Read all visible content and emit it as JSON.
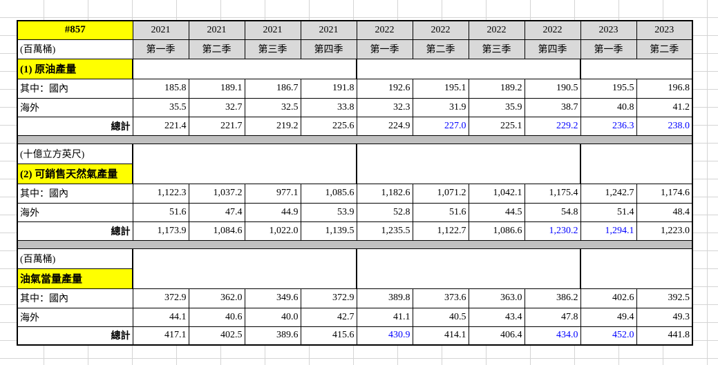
{
  "header": {
    "id": "#857",
    "years": [
      "2021",
      "2021",
      "2021",
      "2021",
      "2022",
      "2022",
      "2022",
      "2022",
      "2023",
      "2023"
    ],
    "unit": "(百萬桶)",
    "quarters": [
      "第一季",
      "第二季",
      "第三季",
      "第四季",
      "第一季",
      "第二季",
      "第三季",
      "第四季",
      "第一季",
      "第二季"
    ]
  },
  "sections": [
    {
      "title": "(1) 原油產量",
      "rows": [
        {
          "label": "其中：國內",
          "values": [
            "185.8",
            "189.1",
            "186.7",
            "191.8",
            "192.6",
            "195.1",
            "189.2",
            "190.5",
            "195.5",
            "196.8"
          ]
        },
        {
          "label": "海外",
          "values": [
            "35.5",
            "32.7",
            "32.5",
            "33.8",
            "32.3",
            "31.9",
            "35.9",
            "38.7",
            "40.8",
            "41.2"
          ]
        },
        {
          "label": "總計",
          "values": [
            "221.4",
            "221.7",
            "219.2",
            "225.6",
            "224.9",
            "227.0",
            "225.1",
            "229.2",
            "236.3",
            "238.0"
          ],
          "colors": [
            "#000000",
            "#000000",
            "#000000",
            "#000000",
            "#000000",
            "#0000ff",
            "#000000",
            "#0000ff",
            "#0000ff",
            "#0000ff"
          ]
        }
      ]
    },
    {
      "unit": "(十億立方英尺)",
      "title": "(2) 可銷售天然氣產量",
      "rows": [
        {
          "label": "其中：國內",
          "values": [
            "1,122.3",
            "1,037.2",
            "977.1",
            "1,085.6",
            "1,182.6",
            "1,071.2",
            "1,042.1",
            "1,175.4",
            "1,242.7",
            "1,174.6"
          ]
        },
        {
          "label": "海外",
          "values": [
            "51.6",
            "47.4",
            "44.9",
            "53.9",
            "52.8",
            "51.6",
            "44.5",
            "54.8",
            "51.4",
            "48.4"
          ]
        },
        {
          "label": "總計",
          "values": [
            "1,173.9",
            "1,084.6",
            "1,022.0",
            "1,139.5",
            "1,235.5",
            "1,122.7",
            "1,086.6",
            "1,230.2",
            "1,294.1",
            "1,223.0"
          ],
          "colors": [
            "#000000",
            "#000000",
            "#000000",
            "#000000",
            "#000000",
            "#000000",
            "#000000",
            "#0000ff",
            "#0000ff",
            "#000000"
          ]
        }
      ]
    },
    {
      "unit": "(百萬桶)",
      "title": "油氣當量產量",
      "rows": [
        {
          "label": "其中：國內",
          "values": [
            "372.9",
            "362.0",
            "349.6",
            "372.9",
            "389.8",
            "373.6",
            "363.0",
            "386.2",
            "402.6",
            "392.5"
          ]
        },
        {
          "label": "海外",
          "values": [
            "44.1",
            "40.6",
            "40.0",
            "42.7",
            "41.1",
            "40.5",
            "43.4",
            "47.8",
            "49.4",
            "49.3"
          ]
        },
        {
          "label": "總計",
          "values": [
            "417.1",
            "402.5",
            "389.6",
            "415.6",
            "430.9",
            "414.1",
            "406.4",
            "434.0",
            "452.0",
            "441.8"
          ],
          "colors": [
            "#000000",
            "#000000",
            "#000000",
            "#000000",
            "#0000ff",
            "#000000",
            "#000000",
            "#0000ff",
            "#0000ff",
            "#000000"
          ]
        }
      ]
    }
  ]
}
